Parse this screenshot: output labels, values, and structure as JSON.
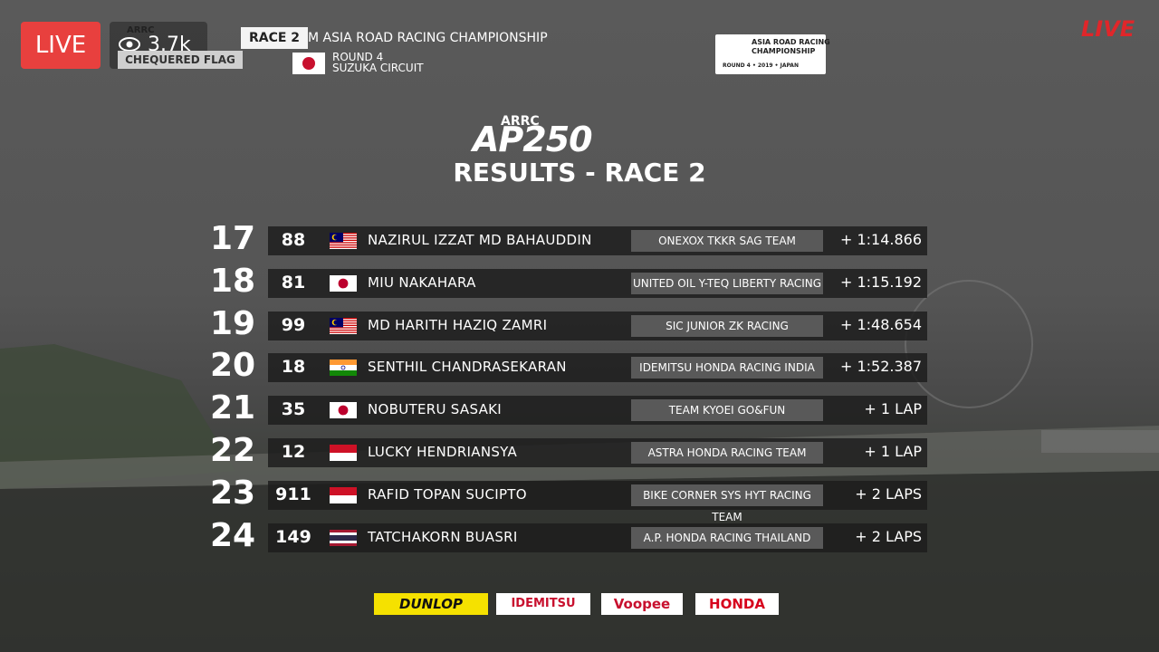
{
  "stream": {
    "live_badge": "LIVE",
    "viewers": "3.7k",
    "live_corner": "LIVE"
  },
  "header": {
    "series": "ARRC",
    "race": "RACE 2",
    "status": "CHEQUERED FLAG",
    "championship": "M ASIA ROAD RACING CHAMPIONSHIP",
    "round": "ROUND 4",
    "circuit": "SUZUKA CIRCUIT"
  },
  "event_logo": {
    "line1": "ASIA ROAD RACING",
    "line2": "CHAMPIONSHIP",
    "line3": "ROUND 4 • 2019 • JAPAN"
  },
  "title": {
    "series": "ARRC",
    "class": "AP250",
    "heading": "RESULTS - RACE 2"
  },
  "results": [
    {
      "position": 17,
      "number": 88,
      "rider": "NAZIRUL IZZAT MD BAHAUDDIN",
      "team": "ONEXOX TKKR SAG TEAM",
      "gap": "+ 1:14.866"
    },
    {
      "position": 18,
      "number": 81,
      "rider": "MIU NAKAHARA",
      "team": "UNITED OIL Y-TEQ LIBERTY RACING",
      "gap": "+ 1:15.192"
    },
    {
      "position": 19,
      "number": 99,
      "rider": "MD HARITH HAZIQ ZAMRI",
      "team": "SIC JUNIOR ZK RACING",
      "gap": "+ 1:48.654"
    },
    {
      "position": 20,
      "number": 18,
      "rider": "SENTHIL CHANDRASEKARAN",
      "team": "IDEMITSU HONDA RACING INDIA",
      "gap": "+ 1:52.387"
    },
    {
      "position": 21,
      "number": 35,
      "rider": "NOBUTERU SASAKI",
      "team": "TEAM KYOEI GO&FUN",
      "gap": "+ 1 LAP"
    },
    {
      "position": 22,
      "number": 12,
      "rider": "LUCKY HENDRIANSYA",
      "team": "ASTRA HONDA RACING TEAM",
      "gap": "+ 1 LAP"
    },
    {
      "position": 23,
      "number": 911,
      "rider": "RAFID TOPAN SUCIPTO",
      "team": "BIKE CORNER SYS HYT RACING TEAM",
      "gap": "+ 2 LAPS"
    },
    {
      "position": 24,
      "number": 149,
      "rider": "TATCHAKORN BUASRI",
      "team": "A.P. HONDA RACING THAILAND",
      "gap": "+ 2 LAPS"
    }
  ],
  "sponsors": [
    "DUNLOP",
    "IDEMITSU",
    "Voopee",
    "HONDA"
  ]
}
